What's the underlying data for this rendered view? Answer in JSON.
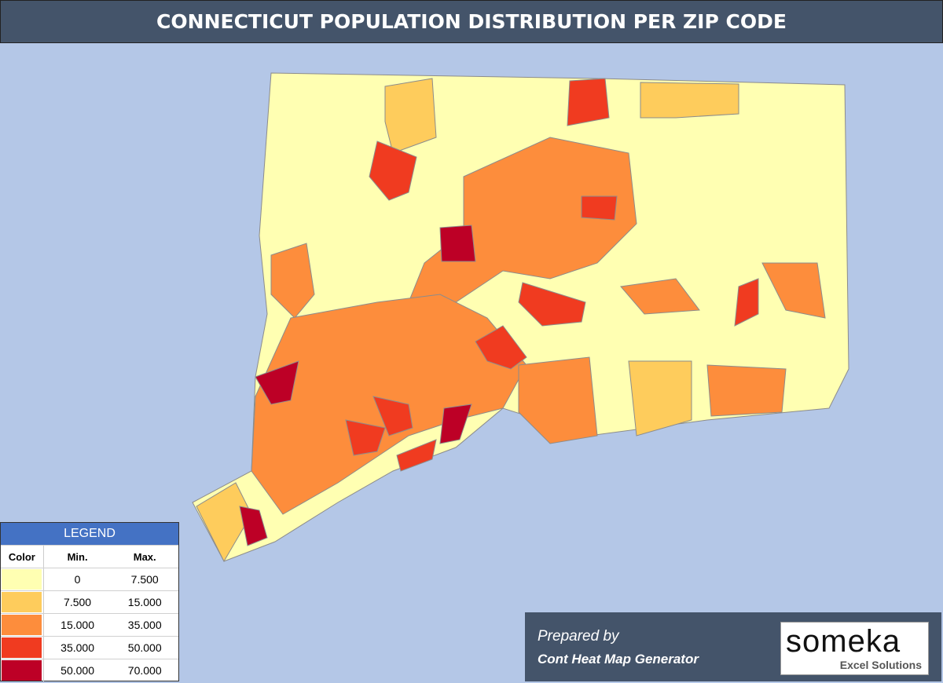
{
  "header": {
    "title": "CONNECTICUT POPULATION DISTRIBUTION PER ZIP CODE"
  },
  "legend": {
    "title": "LEGEND",
    "headers": [
      "Color",
      "Min.",
      "Max."
    ],
    "rows": [
      {
        "color": "#ffffb2",
        "min": "0",
        "max": "7.500"
      },
      {
        "color": "#fecc5c",
        "min": "7.500",
        "max": "15.000"
      },
      {
        "color": "#fd8d3c",
        "min": "15.000",
        "max": "35.000"
      },
      {
        "color": "#f03b20",
        "min": "35.000",
        "max": "50.000"
      },
      {
        "color": "#bd0026",
        "min": "50.000",
        "max": "70.000"
      }
    ]
  },
  "footer": {
    "prepared_by": "Prepared by",
    "generator": "Cont Heat Map Generator",
    "logo": "someka",
    "logo_subtitle": "Excel Solutions"
  }
}
